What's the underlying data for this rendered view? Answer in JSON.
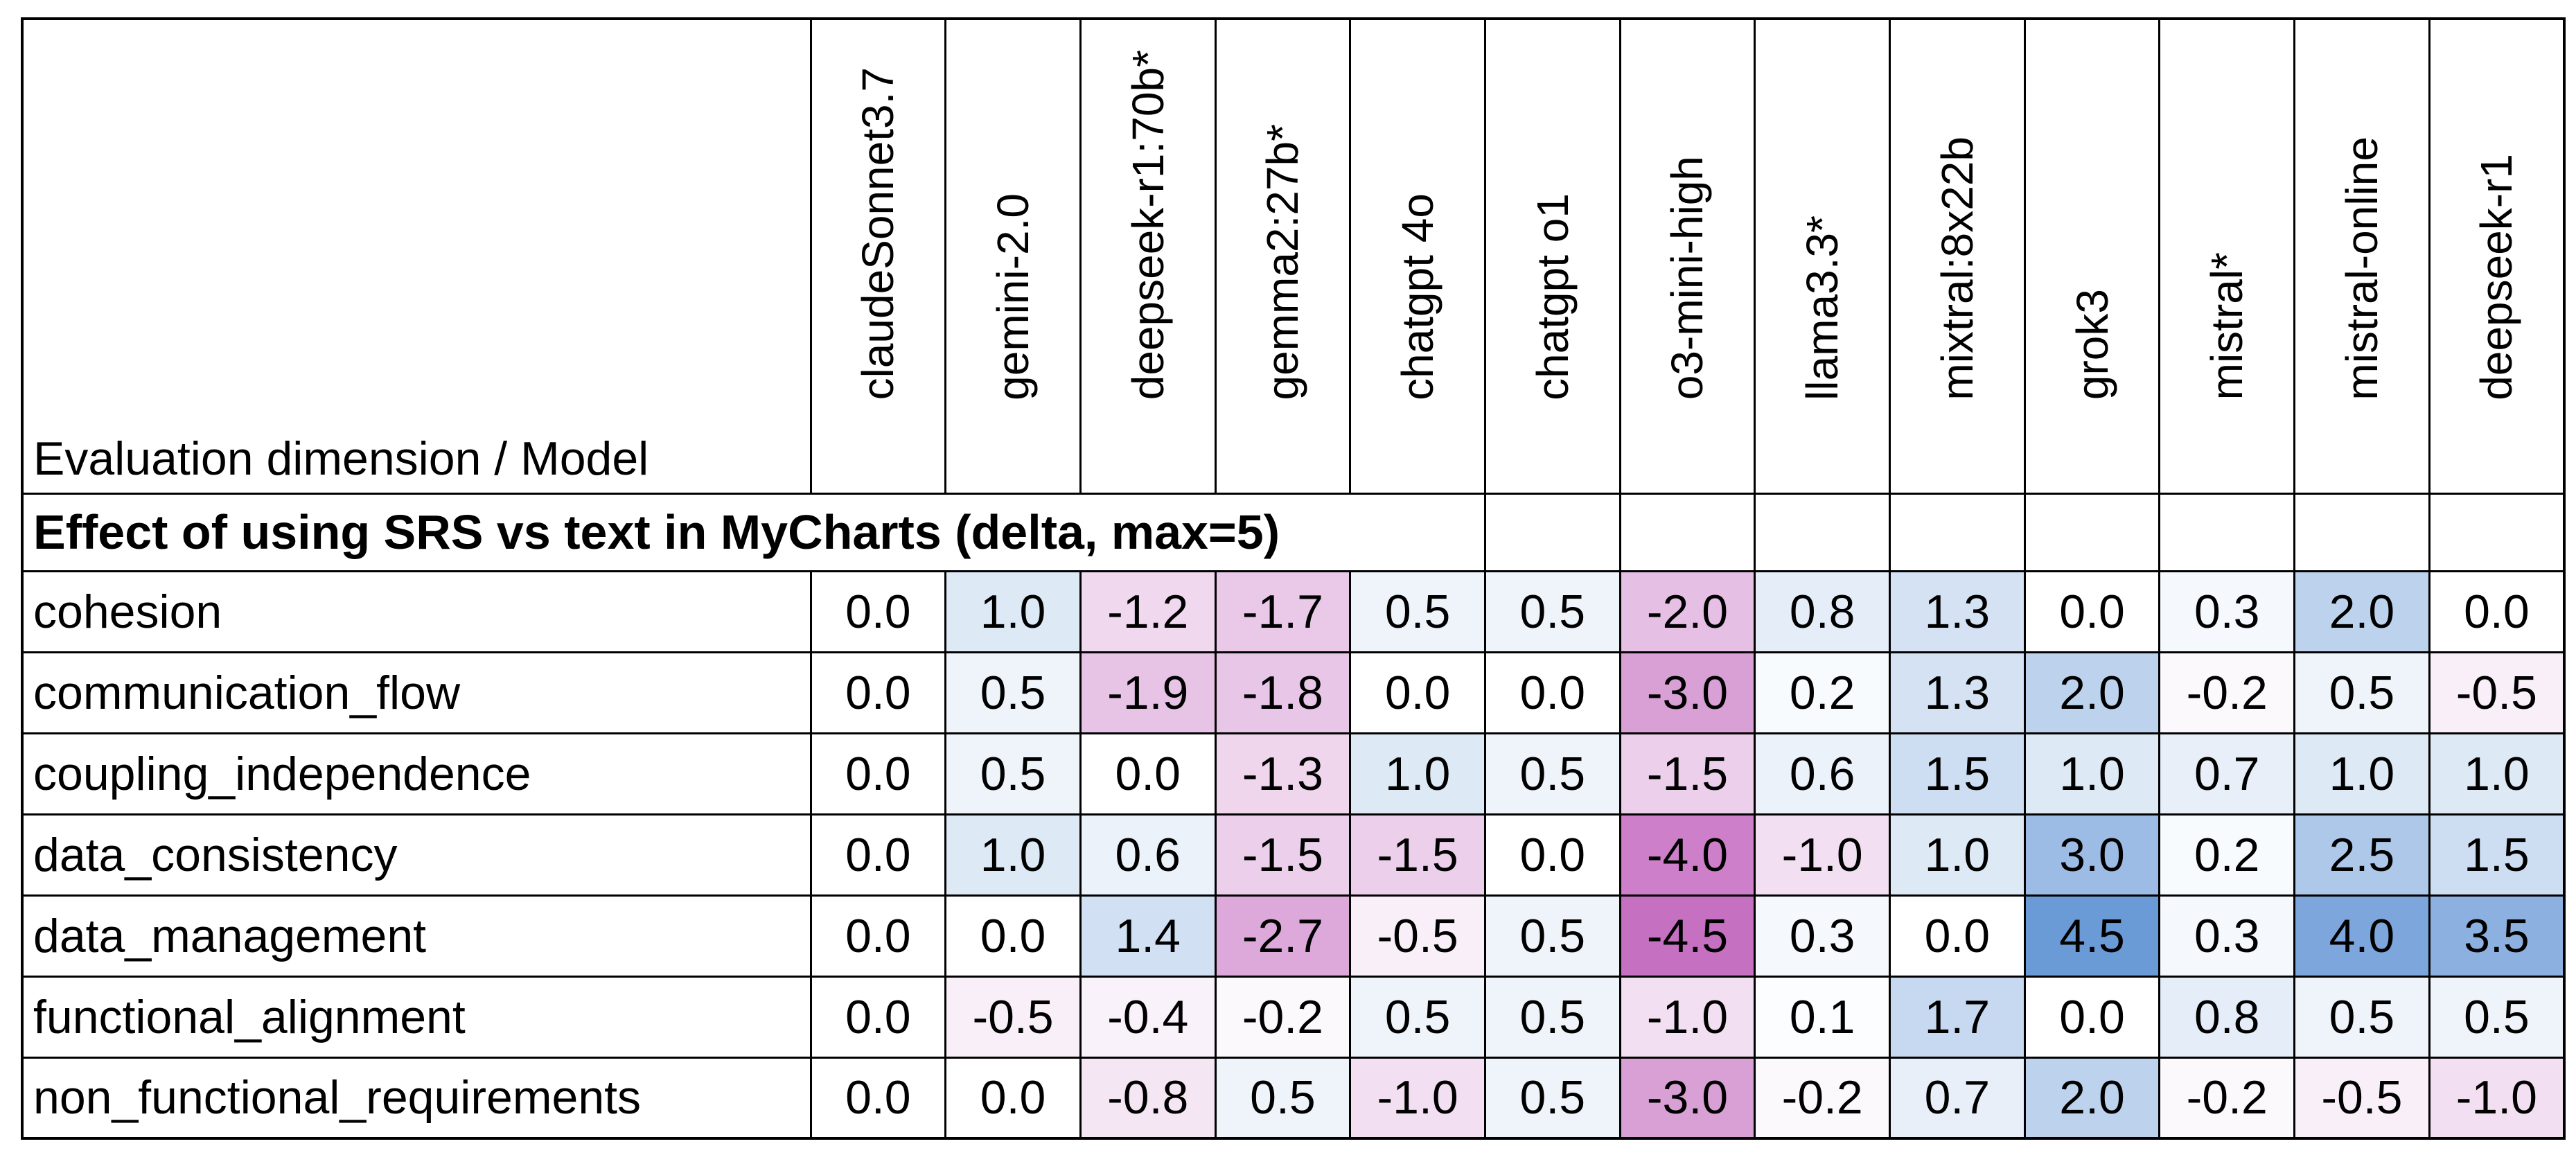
{
  "chart_data": {
    "type": "heatmap",
    "title": "Effect of using SRS vs text in MyCharts (delta, max=5)",
    "corner_label": "Evaluation dimension / Model",
    "columns": [
      "claudeSonnet3.7",
      "gemini-2.0",
      "deepseek-r1:70b*",
      "gemma2:27b*",
      "chatgpt 4o",
      "chatgpt o1",
      "o3-mini-high",
      "llama3.3*",
      "mixtral:8x22b",
      "grok3",
      "mistral*",
      "mistral-online",
      "deepseek-r1"
    ],
    "rows": [
      "cohesion",
      "communication_flow",
      "coupling_independence",
      "data_consistency",
      "data_management",
      "functional_alignment",
      "non_functional_requirements"
    ],
    "values": [
      [
        0.0,
        1.0,
        -1.2,
        -1.7,
        0.5,
        0.5,
        -2.0,
        0.8,
        1.3,
        0.0,
        0.3,
        2.0,
        0.0
      ],
      [
        0.0,
        0.5,
        -1.9,
        -1.8,
        0.0,
        0.0,
        -3.0,
        0.2,
        1.3,
        2.0,
        -0.2,
        0.5,
        -0.5
      ],
      [
        0.0,
        0.5,
        0.0,
        -1.3,
        1.0,
        0.5,
        -1.5,
        0.6,
        1.5,
        1.0,
        0.7,
        1.0,
        1.0
      ],
      [
        0.0,
        1.0,
        0.6,
        -1.5,
        -1.5,
        0.0,
        -4.0,
        -1.0,
        1.0,
        3.0,
        0.2,
        2.5,
        1.5
      ],
      [
        0.0,
        0.0,
        1.4,
        -2.7,
        -0.5,
        0.5,
        -4.5,
        0.3,
        0.0,
        4.5,
        0.3,
        4.0,
        3.5
      ],
      [
        0.0,
        -0.5,
        -0.4,
        -0.2,
        0.5,
        0.5,
        -1.0,
        0.1,
        1.7,
        0.0,
        0.8,
        0.5,
        0.5
      ],
      [
        0.0,
        0.0,
        -0.8,
        0.5,
        -1.0,
        0.5,
        -3.0,
        -0.2,
        0.7,
        2.0,
        -0.2,
        -0.5,
        -1.0
      ]
    ],
    "value_format": "one-decimal",
    "ylim": [
      -5,
      5
    ],
    "color_scale": {
      "domain_max_abs": 5,
      "positive_max_color": "#5B90D3",
      "negative_max_color": "#C060BB",
      "zero_color": "#FFFFFF"
    },
    "style": {
      "text_color": "#000000",
      "grid_color": "#000000",
      "background_color": "#FFFFFF"
    },
    "layout": {
      "rotated_column_headers": true,
      "section_title_colspan_columns": 6,
      "legend": "none",
      "grid": true
    }
  }
}
